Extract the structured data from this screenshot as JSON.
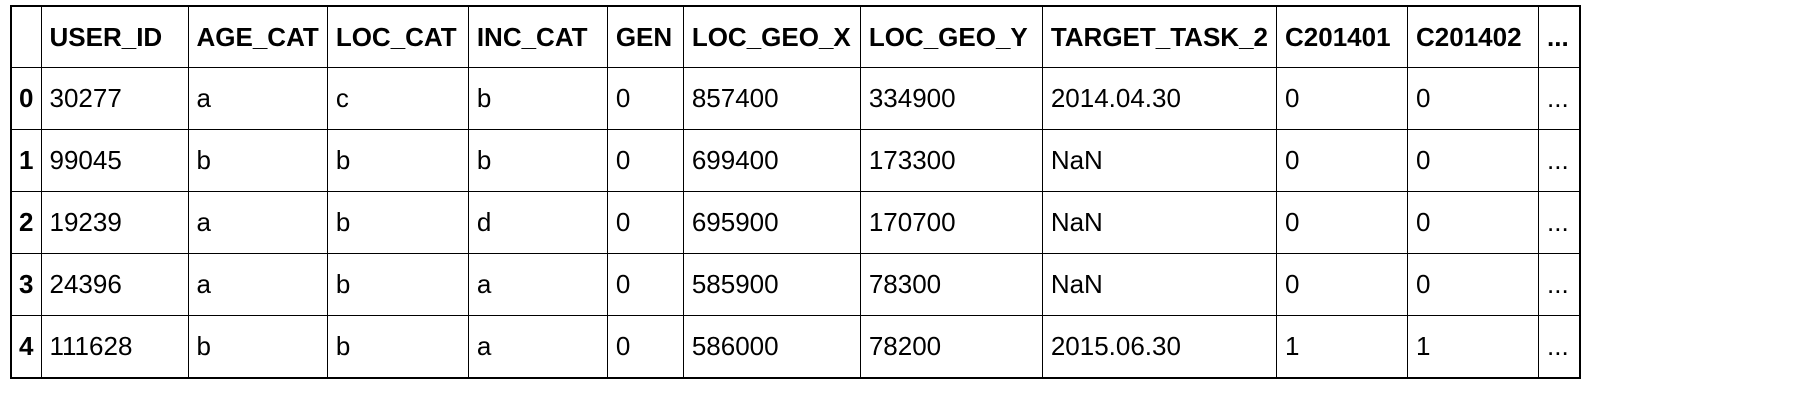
{
  "table": {
    "columns": [
      "",
      "USER_ID",
      "AGE_CAT",
      "LOC_CAT",
      "INC_CAT",
      "GEN",
      "LOC_GEO_X",
      "LOC_GEO_Y",
      "TARGET_TASK_2",
      "C201401",
      "C201402",
      "..."
    ],
    "rows": [
      {
        "index": "0",
        "cells": [
          "30277",
          "a",
          "c",
          "b",
          "0",
          "857400",
          "334900",
          "2014.04.30",
          "0",
          "0",
          "..."
        ]
      },
      {
        "index": "1",
        "cells": [
          "99045",
          "b",
          "b",
          "b",
          "0",
          "699400",
          "173300",
          "NaN",
          "0",
          "0",
          "..."
        ]
      },
      {
        "index": "2",
        "cells": [
          "19239",
          "a",
          "b",
          "d",
          "0",
          "695900",
          "170700",
          "NaN",
          "0",
          "0",
          "..."
        ]
      },
      {
        "index": "3",
        "cells": [
          "24396",
          "a",
          "b",
          "a",
          "0",
          "585900",
          "78300",
          "NaN",
          "0",
          "0",
          "..."
        ]
      },
      {
        "index": "4",
        "cells": [
          "111628",
          "b",
          "b",
          "a",
          "0",
          "586000",
          "78200",
          "2015.06.30",
          "1",
          "1",
          "..."
        ]
      }
    ]
  }
}
